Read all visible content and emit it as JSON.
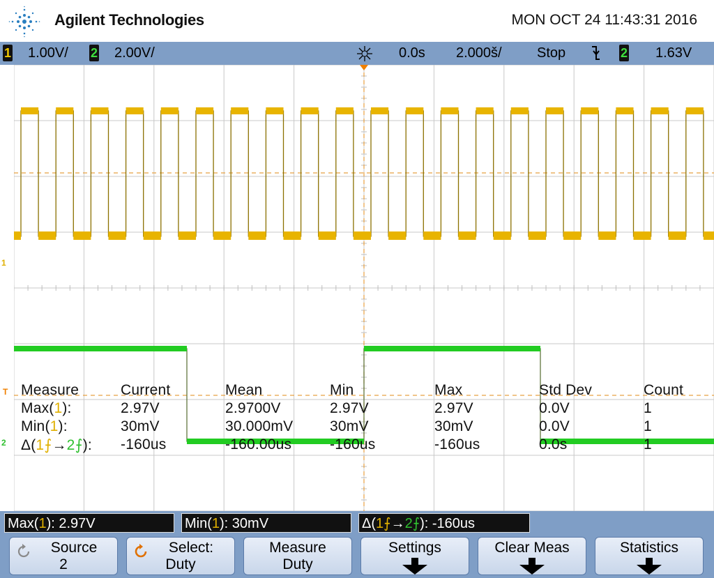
{
  "header": {
    "brand": "Agilent Technologies",
    "datetime": "MON OCT 24 11:43:31 2016",
    "logo_icon": "agilent-spark-icon"
  },
  "statusbar": {
    "ch1_num": "1",
    "ch1_scale": "1.00V/",
    "ch2_num": "2",
    "ch2_scale": "2.00V/",
    "trigger_icon": "trigger-spark-icon",
    "delay": "0.0s",
    "timebase": "2.000š/",
    "run_state": "Stop",
    "edge_icon": "falling-edge-icon",
    "trig_ch": "2",
    "trig_level": "1.63V"
  },
  "markers": {
    "ch1": "1",
    "ch2": "2",
    "trig": "T"
  },
  "measurements": {
    "headers": [
      "Measure",
      "Current",
      "Mean",
      "Min",
      "Max",
      "Std Dev",
      "Count"
    ],
    "rows": [
      {
        "label_pre": "Max(",
        "label_ch": "1",
        "label_post": "):",
        "values": [
          "2.97V",
          "2.9700V",
          "2.97V",
          "2.97V",
          "0.0V",
          "1"
        ]
      },
      {
        "label_pre": "Min(",
        "label_ch": "1",
        "label_post": "):",
        "values": [
          "30mV",
          "30.000mV",
          "30mV",
          "30mV",
          "0.0V",
          "1"
        ]
      },
      {
        "label_pre": "Δ(",
        "label_ch": "1",
        "label_mid": "→",
        "label_ch2": "2",
        "label_post": "):",
        "values": [
          "-160us",
          "-160.00us",
          "-160us",
          "-160us",
          "0.0s",
          "1"
        ]
      }
    ]
  },
  "results": {
    "max_pre": "Max(",
    "max_ch": "1",
    "max_post": "): 2.97V",
    "min_pre": "Min(",
    "min_ch": "1",
    "min_post": "): 30mV",
    "delta_pre": "Δ(",
    "delta_ch": "1",
    "delta_mid": "→",
    "delta_ch2": "2",
    "delta_post": "): -160us"
  },
  "softkeys": {
    "source": {
      "line1": "Source",
      "line2": "2"
    },
    "select": {
      "line1": "Select:",
      "line2": "Duty"
    },
    "measure": {
      "line1": "Measure",
      "line2": "Duty"
    },
    "settings": {
      "line1": "Settings"
    },
    "clear": {
      "line1": "Clear Meas"
    },
    "statistics": {
      "line1": "Statistics"
    }
  },
  "colors": {
    "ch1": "#e8b400",
    "ch2": "#22cc22",
    "bar": "#7f9ec6",
    "trigger": "#f08000"
  }
}
